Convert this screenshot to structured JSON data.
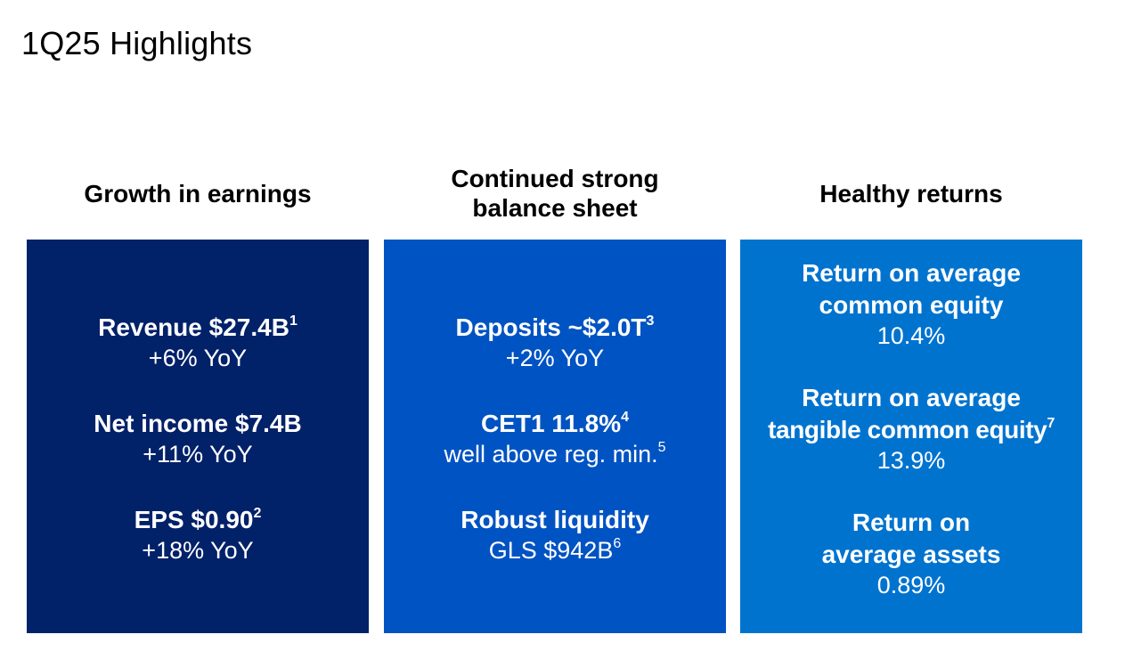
{
  "page": {
    "title": "1Q25 Highlights"
  },
  "columns": [
    {
      "header_lines": [
        "Growth in earnings"
      ],
      "items": [
        {
          "headline": "Revenue $27.4B",
          "sup": "1",
          "sub": "+6% YoY"
        },
        {
          "headline": "Net income $7.4B",
          "sup": "",
          "sub": "+11% YoY"
        },
        {
          "headline": "EPS $0.90",
          "sup": "2",
          "sub": "+18% YoY"
        }
      ]
    },
    {
      "header_lines": [
        "Continued strong",
        "balance sheet"
      ],
      "items": [
        {
          "headline": "Deposits ~$2.0T",
          "sup": "3",
          "sub": "+2% YoY"
        },
        {
          "headline": "CET1 11.8%",
          "sup": "4",
          "sub": "well above reg. min.",
          "sub_sup": "5"
        },
        {
          "headline": "Robust liquidity",
          "sup": "",
          "sub": "GLS $942B",
          "sub_sup": "6"
        }
      ]
    },
    {
      "header_lines": [
        "Healthy returns"
      ],
      "items": [
        {
          "headline_lines": [
            "Return on average",
            "common equity"
          ],
          "sup": "",
          "sub": "10.4%"
        },
        {
          "headline_lines": [
            "Return on average",
            "tangible common equity"
          ],
          "sup": "7",
          "sub": "13.9%"
        },
        {
          "headline_lines": [
            "Return on",
            "average assets"
          ],
          "sup": "",
          "sub": "0.89%"
        }
      ]
    }
  ],
  "colors": {
    "panel_1": "#012169",
    "panel_2": "#0053c2",
    "panel_3": "#0073cf"
  }
}
